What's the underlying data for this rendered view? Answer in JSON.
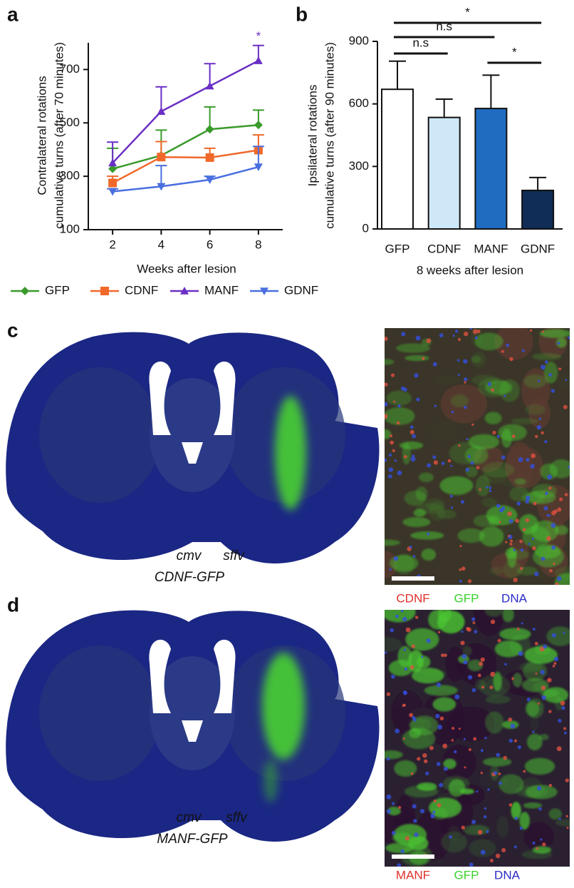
{
  "figure": {
    "panel_labels": [
      "a",
      "b",
      "c",
      "d"
    ],
    "panel_c": {
      "promoters": [
        "cmv",
        "sffv"
      ],
      "construct": "CDNF-GFP",
      "stain_legend": [
        "CDNF",
        "GFP",
        "DNA"
      ]
    },
    "panel_d": {
      "promoters": [
        "cmv",
        "sffv"
      ],
      "construct": "MANF-GFP",
      "stain_legend": [
        "MANF",
        "GFP",
        "DNA"
      ]
    }
  },
  "chart_data": [
    {
      "type": "line",
      "ylabel": [
        "Contralateral rotations",
        "cumulative turns (after 70 minutes)"
      ],
      "xlabel": "Weeks after lesion",
      "x": [
        2,
        4,
        6,
        8
      ],
      "xlim": [
        1,
        9
      ],
      "xticks": [
        2,
        4,
        6,
        8
      ],
      "ylim": [
        100,
        800
      ],
      "yticks": [
        100,
        300,
        500,
        700
      ],
      "annotation": "*",
      "series": [
        {
          "name": "GFP",
          "color": "#3a9a2b",
          "marker": "diamond",
          "values": [
            328,
            378,
            476,
            492
          ],
          "errors": [
            77,
            95,
            84,
            56
          ]
        },
        {
          "name": "CDNF",
          "color": "#f0692a",
          "marker": "square",
          "values": [
            275,
            372,
            370,
            398
          ],
          "errors": [
            25,
            58,
            35,
            57
          ]
        },
        {
          "name": "MANF",
          "color": "#6a2fc4",
          "marker": "triangle-up",
          "values": [
            350,
            543,
            638,
            733
          ],
          "errors": [
            78,
            92,
            84,
            57
          ]
        },
        {
          "name": "GDNF",
          "color": "#4a6fe0",
          "marker": "triangle-down",
          "values": [
            243,
            262,
            287,
            335
          ],
          "errors": [
            10,
            78,
            13,
            77
          ]
        }
      ]
    },
    {
      "type": "bar",
      "ylabel": [
        "Ipsilateral rotations",
        "cumulative turns (after 90 minutes)"
      ],
      "xlabel": "8 weeks after lesion",
      "categories": [
        "GFP",
        "CDNF",
        "MANF",
        "GDNF"
      ],
      "values": [
        670,
        535,
        578,
        185
      ],
      "errors": [
        135,
        88,
        160,
        62
      ],
      "colors": [
        "#ffffff",
        "#cfe8f7",
        "#1f6cc0",
        "#0f2d56"
      ],
      "ylim": [
        0,
        900
      ],
      "yticks": [
        0,
        300,
        600,
        900
      ],
      "annotations": [
        "*",
        "n.s",
        "n.s",
        "*"
      ]
    }
  ]
}
